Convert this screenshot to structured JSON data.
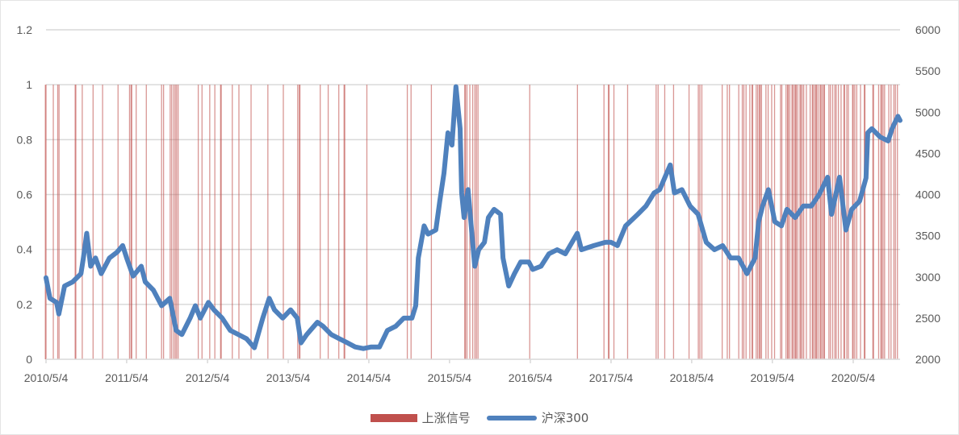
{
  "chart_data": {
    "type": "bar+line",
    "title": "",
    "x_axis": {
      "type": "date",
      "range": [
        "2010-05-04",
        "2020-12-02"
      ],
      "tick_labels": [
        "2010/5/4",
        "2011/5/4",
        "2012/5/4",
        "2013/5/4",
        "2014/5/4",
        "2015/5/4",
        "2016/5/4",
        "2017/5/4",
        "2018/5/4",
        "2019/5/4",
        "2020/5/4"
      ],
      "tick_dates": [
        "2010-05-04",
        "2011-05-04",
        "2012-05-04",
        "2013-05-04",
        "2014-05-04",
        "2015-05-04",
        "2016-05-04",
        "2017-05-04",
        "2018-05-04",
        "2019-05-04",
        "2020-05-04"
      ]
    },
    "y_left": {
      "range": [
        0,
        1.2
      ],
      "tick_labels": [
        "0",
        "0.2",
        "0.4",
        "0.6",
        "0.8",
        "1",
        "1.2"
      ],
      "ticks": [
        0,
        0.2,
        0.4,
        0.6,
        0.8,
        1,
        1.2
      ]
    },
    "y_right": {
      "range": [
        2000,
        6000
      ],
      "tick_labels": [
        "2000",
        "2500",
        "3000",
        "3500",
        "4000",
        "4500",
        "5000",
        "5500",
        "6000"
      ],
      "ticks": [
        2000,
        2500,
        3000,
        3500,
        4000,
        4500,
        5000,
        5500,
        6000
      ]
    },
    "grid": "horizontal",
    "legend_position": "bottom",
    "series": [
      {
        "name": "上涨信号",
        "type": "bar",
        "axis": "left",
        "color": "#c0504d",
        "value": 1,
        "dates": [
          "2010-05-01",
          "2010-05-04",
          "2010-06-06",
          "2010-06-26",
          "2010-07-02",
          "2010-09-13",
          "2010-09-16",
          "2010-10-15",
          "2010-12-03",
          "2011-01-15",
          "2011-03-26",
          "2011-05-17",
          "2011-05-24",
          "2011-05-27",
          "2011-06-16",
          "2011-08-01",
          "2011-10-09",
          "2011-10-18",
          "2011-11-17",
          "2011-11-24",
          "2011-12-03",
          "2011-12-10",
          "2011-12-16",
          "2011-12-23",
          "2012-03-23",
          "2012-04-09",
          "2012-05-14",
          "2012-06-06",
          "2012-07-02",
          "2012-07-05",
          "2012-08-24",
          "2012-09-23",
          "2012-11-17",
          "2013-02-01",
          "2013-04-12",
          "2013-06-16",
          "2013-06-23",
          "2013-06-26",
          "2013-09-26",
          "2013-11-01",
          "2013-12-19",
          "2014-01-12",
          "2014-01-15",
          "2014-04-25",
          "2014-10-25",
          "2014-11-11",
          "2015-02-11",
          "2015-07-12",
          "2015-07-15",
          "2015-07-22",
          "2015-08-04",
          "2015-08-17",
          "2015-08-27",
          "2015-09-03",
          "2015-09-10",
          "2016-05-01",
          "2016-12-03",
          "2017-04-02",
          "2017-04-22",
          "2017-04-25",
          "2017-05-17",
          "2017-07-18",
          "2017-11-24",
          "2017-12-03",
          "2018-01-02",
          "2018-02-11",
          "2018-04-22",
          "2018-06-03",
          "2018-06-10",
          "2018-06-19",
          "2018-09-19",
          "2018-10-12",
          "2018-10-22",
          "2018-12-03",
          "2018-12-19",
          "2018-12-26",
          "2019-01-05",
          "2019-01-22",
          "2019-02-01",
          "2019-02-04",
          "2019-02-20",
          "2019-02-27",
          "2019-03-06",
          "2019-03-10",
          "2019-03-16",
          "2019-04-05",
          "2019-04-15",
          "2019-05-01",
          "2019-05-14",
          "2019-06-10",
          "2019-06-16",
          "2019-07-05",
          "2019-07-12",
          "2019-07-15",
          "2019-07-22",
          "2019-08-01",
          "2019-08-04",
          "2019-08-11",
          "2019-08-17",
          "2019-08-20",
          "2019-08-27",
          "2019-09-06",
          "2019-09-10",
          "2019-09-16",
          "2019-09-23",
          "2019-10-05",
          "2019-10-22",
          "2019-11-01",
          "2019-11-04",
          "2019-11-11",
          "2019-11-17",
          "2019-11-20",
          "2019-11-27",
          "2019-12-06",
          "2019-12-10",
          "2019-12-16",
          "2019-12-23",
          "2019-12-26",
          "2020-01-15",
          "2020-01-22",
          "2020-02-01",
          "2020-02-11",
          "2020-02-17",
          "2020-02-27",
          "2020-03-10",
          "2020-03-23",
          "2020-03-26",
          "2020-04-05",
          "2020-04-12",
          "2020-05-01",
          "2020-05-04",
          "2020-05-11",
          "2020-05-20",
          "2020-06-06",
          "2020-06-23",
          "2020-06-26",
          "2020-08-01",
          "2020-08-04",
          "2020-08-27",
          "2020-09-06",
          "2020-09-10",
          "2020-09-16",
          "2020-09-23",
          "2020-10-12",
          "2020-10-22",
          "2020-11-04",
          "2020-11-11",
          "2020-11-20"
        ]
      },
      {
        "name": "沪深300",
        "type": "line",
        "axis": "right",
        "color": "#4f81bd",
        "points": [
          [
            "2010-05-04",
            2990
          ],
          [
            "2010-05-22",
            2740
          ],
          [
            "2010-06-21",
            2690
          ],
          [
            "2010-07-01",
            2550
          ],
          [
            "2010-07-27",
            2890
          ],
          [
            "2010-09-02",
            2940
          ],
          [
            "2010-10-09",
            3040
          ],
          [
            "2010-10-20",
            3230
          ],
          [
            "2010-11-04",
            3530
          ],
          [
            "2010-11-22",
            3130
          ],
          [
            "2010-12-14",
            3230
          ],
          [
            "2011-01-09",
            3040
          ],
          [
            "2011-02-15",
            3230
          ],
          [
            "2011-03-21",
            3300
          ],
          [
            "2011-04-16",
            3380
          ],
          [
            "2011-05-04",
            3230
          ],
          [
            "2011-06-02",
            3010
          ],
          [
            "2011-07-09",
            3130
          ],
          [
            "2011-07-27",
            2940
          ],
          [
            "2011-09-02",
            2840
          ],
          [
            "2011-10-09",
            2650
          ],
          [
            "2011-11-15",
            2740
          ],
          [
            "2011-12-14",
            2350
          ],
          [
            "2012-01-09",
            2300
          ],
          [
            "2012-02-15",
            2500
          ],
          [
            "2012-03-10",
            2650
          ],
          [
            "2012-04-01",
            2500
          ],
          [
            "2012-05-08",
            2690
          ],
          [
            "2012-06-02",
            2600
          ],
          [
            "2012-07-09",
            2500
          ],
          [
            "2012-08-15",
            2350
          ],
          [
            "2012-09-21",
            2300
          ],
          [
            "2012-10-27",
            2250
          ],
          [
            "2012-12-02",
            2140
          ],
          [
            "2013-01-09",
            2500
          ],
          [
            "2013-02-07",
            2740
          ],
          [
            "2013-03-03",
            2600
          ],
          [
            "2013-04-09",
            2500
          ],
          [
            "2013-05-15",
            2600
          ],
          [
            "2013-06-14",
            2500
          ],
          [
            "2013-07-01",
            2200
          ],
          [
            "2013-07-27",
            2300
          ],
          [
            "2013-09-13",
            2450
          ],
          [
            "2013-10-09",
            2400
          ],
          [
            "2013-11-15",
            2300
          ],
          [
            "2013-12-21",
            2250
          ],
          [
            "2014-01-27",
            2200
          ],
          [
            "2014-03-03",
            2150
          ],
          [
            "2014-04-09",
            2130
          ],
          [
            "2014-05-15",
            2150
          ],
          [
            "2014-06-21",
            2150
          ],
          [
            "2014-07-27",
            2350
          ],
          [
            "2014-09-02",
            2400
          ],
          [
            "2014-10-09",
            2500
          ],
          [
            "2014-11-15",
            2500
          ],
          [
            "2014-12-02",
            2650
          ],
          [
            "2014-12-14",
            3230
          ],
          [
            "2015-01-09",
            3620
          ],
          [
            "2015-01-27",
            3520
          ],
          [
            "2015-03-03",
            3570
          ],
          [
            "2015-03-21",
            3920
          ],
          [
            "2015-04-09",
            4260
          ],
          [
            "2015-04-27",
            4750
          ],
          [
            "2015-05-15",
            4600
          ],
          [
            "2015-06-02",
            5310
          ],
          [
            "2015-06-21",
            4800
          ],
          [
            "2015-06-28",
            4020
          ],
          [
            "2015-07-09",
            3720
          ],
          [
            "2015-07-27",
            4060
          ],
          [
            "2015-08-26",
            3130
          ],
          [
            "2015-09-13",
            3330
          ],
          [
            "2015-10-09",
            3420
          ],
          [
            "2015-10-27",
            3720
          ],
          [
            "2015-11-22",
            3820
          ],
          [
            "2015-12-21",
            3760
          ],
          [
            "2016-01-01",
            3230
          ],
          [
            "2016-01-27",
            2890
          ],
          [
            "2016-02-22",
            3040
          ],
          [
            "2016-03-21",
            3180
          ],
          [
            "2016-04-27",
            3180
          ],
          [
            "2016-05-15",
            3090
          ],
          [
            "2016-06-21",
            3130
          ],
          [
            "2016-07-27",
            3280
          ],
          [
            "2016-09-02",
            3330
          ],
          [
            "2016-10-09",
            3280
          ],
          [
            "2016-12-02",
            3530
          ],
          [
            "2016-12-21",
            3330
          ],
          [
            "2017-02-15",
            3380
          ],
          [
            "2017-04-09",
            3420
          ],
          [
            "2017-05-04",
            3420
          ],
          [
            "2017-06-02",
            3380
          ],
          [
            "2017-07-09",
            3620
          ],
          [
            "2017-09-02",
            3760
          ],
          [
            "2017-10-09",
            3860
          ],
          [
            "2017-11-15",
            4020
          ],
          [
            "2017-12-10",
            4060
          ],
          [
            "2018-01-27",
            4360
          ],
          [
            "2018-02-15",
            4020
          ],
          [
            "2018-03-21",
            4060
          ],
          [
            "2018-04-27",
            3860
          ],
          [
            "2018-06-02",
            3760
          ],
          [
            "2018-07-09",
            3420
          ],
          [
            "2018-08-15",
            3330
          ],
          [
            "2018-09-21",
            3380
          ],
          [
            "2018-10-27",
            3230
          ],
          [
            "2018-12-02",
            3230
          ],
          [
            "2019-01-09",
            3040
          ],
          [
            "2019-02-15",
            3230
          ],
          [
            "2019-03-03",
            3670
          ],
          [
            "2019-03-21",
            3860
          ],
          [
            "2019-04-16",
            4060
          ],
          [
            "2019-05-15",
            3670
          ],
          [
            "2019-06-14",
            3620
          ],
          [
            "2019-07-09",
            3820
          ],
          [
            "2019-08-15",
            3720
          ],
          [
            "2019-09-21",
            3860
          ],
          [
            "2019-10-27",
            3860
          ],
          [
            "2019-12-02",
            4000
          ],
          [
            "2020-01-09",
            4210
          ],
          [
            "2020-01-27",
            3760
          ],
          [
            "2020-03-03",
            4210
          ],
          [
            "2020-04-01",
            3570
          ],
          [
            "2020-04-27",
            3820
          ],
          [
            "2020-06-02",
            3920
          ],
          [
            "2020-07-01",
            4200
          ],
          [
            "2020-07-09",
            4750
          ],
          [
            "2020-07-27",
            4800
          ],
          [
            "2020-09-02",
            4700
          ],
          [
            "2020-10-09",
            4650
          ],
          [
            "2020-10-27",
            4800
          ],
          [
            "2020-11-22",
            4950
          ],
          [
            "2020-12-02",
            4900
          ]
        ]
      }
    ]
  },
  "legend": {
    "signal_label": "上涨信号",
    "index_label": "沪深300"
  }
}
